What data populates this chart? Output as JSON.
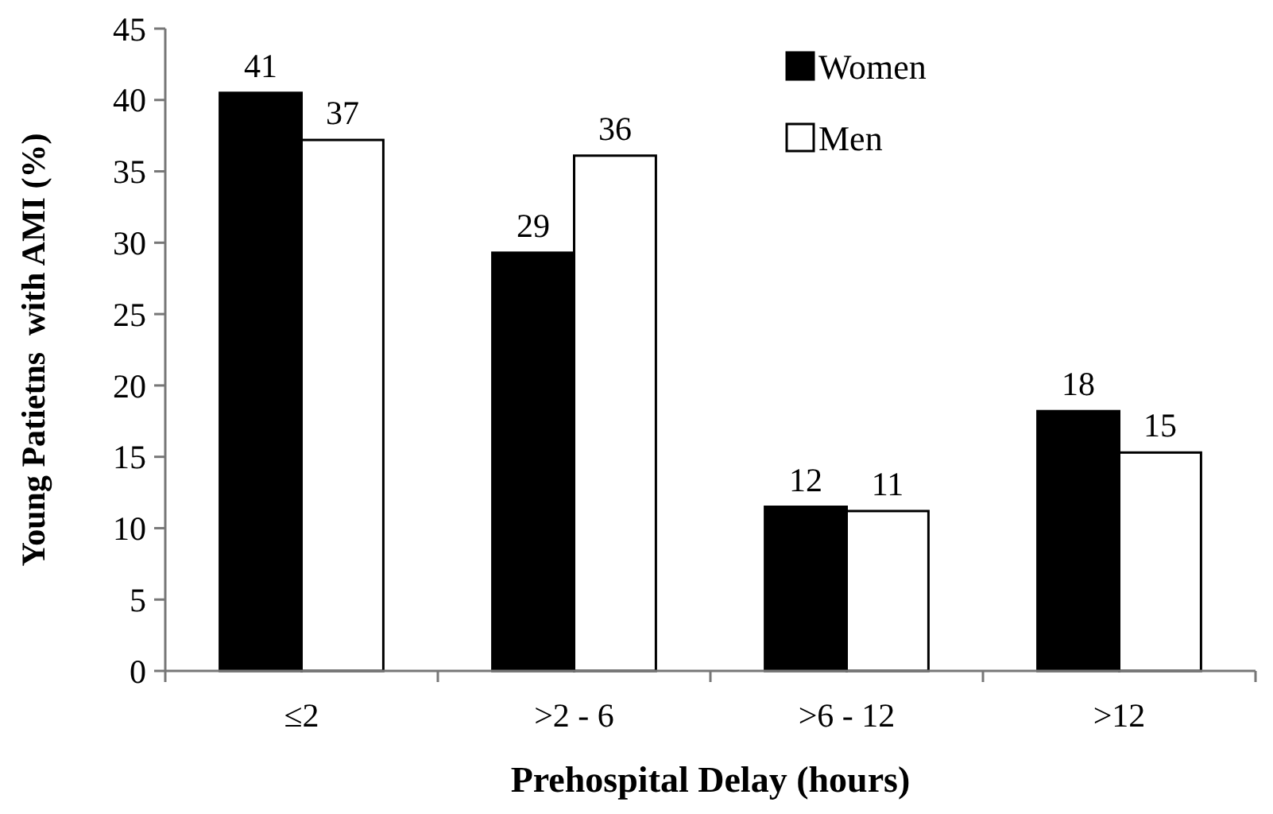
{
  "chart_data": {
    "type": "bar",
    "xlabel": "Prehospital Delay (hours)",
    "ylabel": "Young Patietns  with AMI (%)",
    "categories": [
      "≤2",
      ">2 - 6",
      ">6 - 12",
      ">12"
    ],
    "series": [
      {
        "name": "Women",
        "color": "#000000",
        "values": [
          40.5,
          29.3,
          11.5,
          18.2
        ],
        "value_labels": [
          "41",
          "29",
          "12",
          "18"
        ]
      },
      {
        "name": "Men",
        "color": "#ffffff",
        "values": [
          37.2,
          36.1,
          11.2,
          15.3
        ],
        "value_labels": [
          "37",
          "36",
          "11",
          "15"
        ]
      }
    ],
    "ylim": [
      0,
      45
    ],
    "yticks": [
      0,
      5,
      10,
      15,
      20,
      25,
      30,
      35,
      40,
      45
    ],
    "grid": false,
    "legend": "top right"
  }
}
